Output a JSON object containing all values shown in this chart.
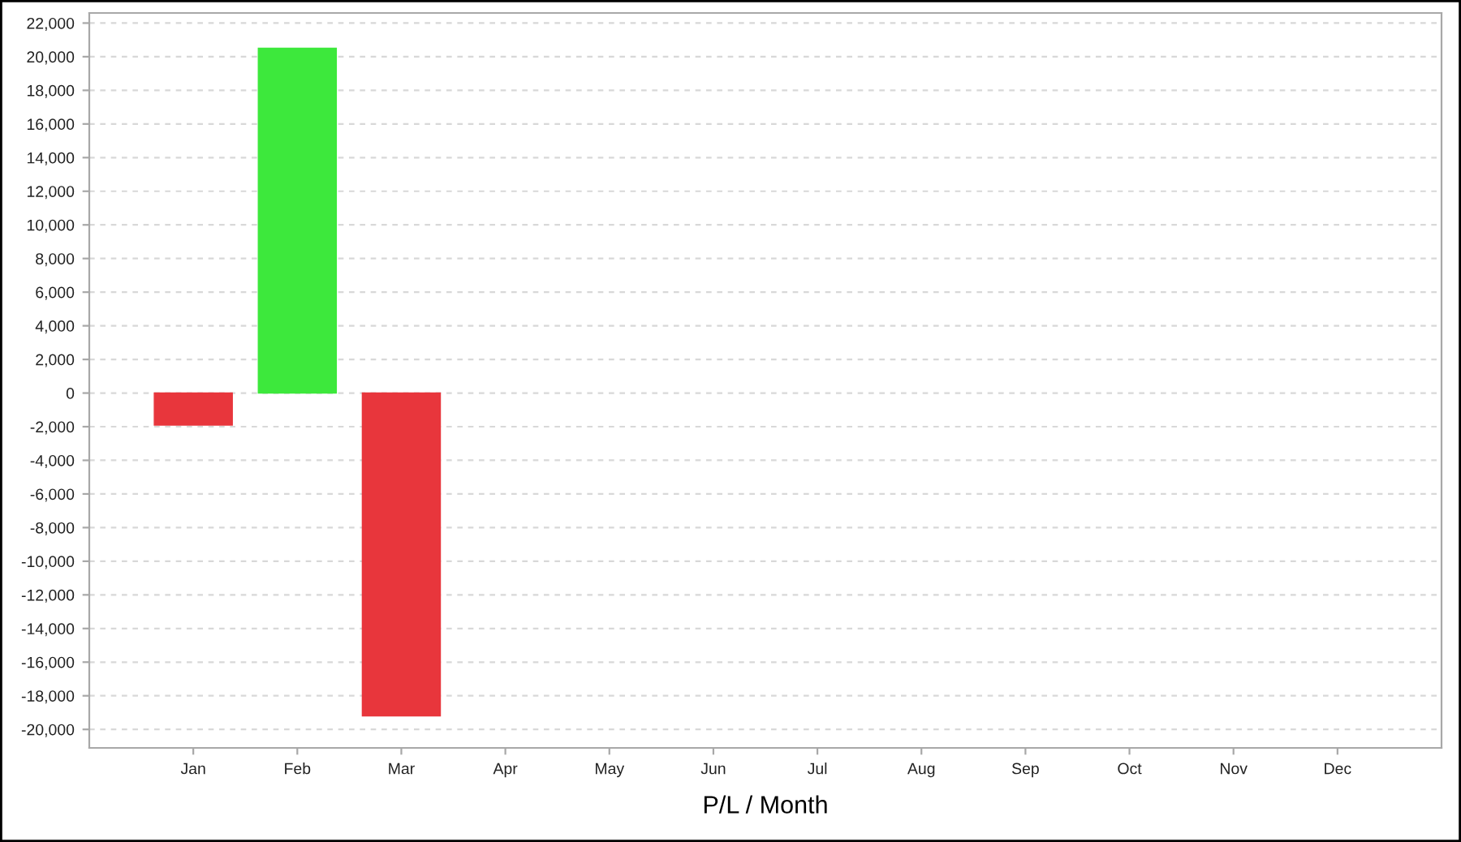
{
  "chart_data": {
    "type": "bar",
    "xlabel": "P/L / Month",
    "categories": [
      "Jan",
      "Feb",
      "Mar",
      "Apr",
      "May",
      "Jun",
      "Jul",
      "Aug",
      "Sep",
      "Oct",
      "Nov",
      "Dec"
    ],
    "values": [
      -1900,
      20500,
      -19200,
      null,
      null,
      null,
      null,
      null,
      null,
      null,
      null,
      null
    ],
    "colors": [
      "#e8363c",
      "#3de83c",
      "#e8363c",
      null,
      null,
      null,
      null,
      null,
      null,
      null,
      null,
      null
    ],
    "ylim": [
      -21100,
      22600
    ],
    "yticks": [
      {
        "value": -20000,
        "label": "-20,000"
      },
      {
        "value": -18000,
        "label": "-18,000"
      },
      {
        "value": -16000,
        "label": "-16,000"
      },
      {
        "value": -14000,
        "label": "-14,000"
      },
      {
        "value": -12000,
        "label": "-12,000"
      },
      {
        "value": -10000,
        "label": "-10,000"
      },
      {
        "value": -8000,
        "label": "-8,000"
      },
      {
        "value": -6000,
        "label": "-6,000"
      },
      {
        "value": -4000,
        "label": "-4,000"
      },
      {
        "value": -2000,
        "label": "-2,000"
      },
      0,
      {
        "value": 2000,
        "label": "2,000"
      },
      {
        "value": 4000,
        "label": "4,000"
      },
      {
        "value": 6000,
        "label": "6,000"
      },
      {
        "value": 8000,
        "label": "8,000"
      },
      {
        "value": 10000,
        "label": "10,000"
      },
      {
        "value": 12000,
        "label": "12,000"
      },
      {
        "value": 14000,
        "label": "14,000"
      },
      {
        "value": 16000,
        "label": "16,000"
      },
      {
        "value": 18000,
        "label": "18,000"
      },
      {
        "value": 20000,
        "label": "20,000"
      },
      {
        "value": 22000,
        "label": "22,000"
      }
    ],
    "grid": "y"
  }
}
